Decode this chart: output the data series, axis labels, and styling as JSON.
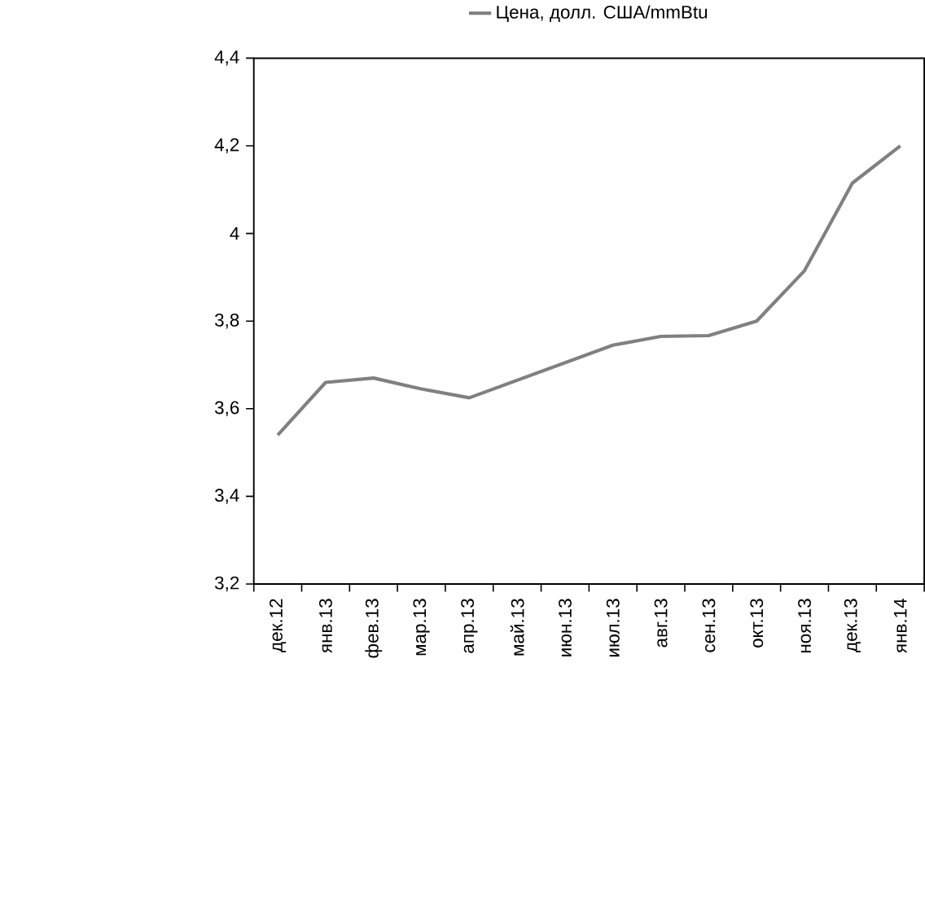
{
  "chart_data": {
    "type": "line",
    "categories": [
      "дек.12",
      "янв.13",
      "фев.13",
      "мар.13",
      "апр.13",
      "май.13",
      "июн.13",
      "июл.13",
      "авг.13",
      "сен.13",
      "окт.13",
      "ноя.13",
      "дек.13",
      "янв.14"
    ],
    "series": [
      {
        "name": "Цена, долл. США/mmBtu",
        "color": "#808080",
        "values": [
          3.54,
          3.66,
          3.67,
          3.645,
          3.625,
          3.665,
          3.705,
          3.745,
          3.765,
          3.767,
          3.8,
          3.915,
          4.115,
          4.2
        ]
      }
    ],
    "ylim": [
      3.2,
      4.4
    ],
    "yticks": [
      {
        "value": 3.2,
        "label": "3,2"
      },
      {
        "value": 3.4,
        "label": "3,4"
      },
      {
        "value": 3.6,
        "label": "3,6"
      },
      {
        "value": 3.8,
        "label": "3,8"
      },
      4,
      {
        "value": 4.2,
        "label": "4,2"
      },
      {
        "value": 4.4,
        "label": "4,4"
      }
    ],
    "grid": false,
    "legend": "top",
    "marker": "none",
    "line_style": "solid"
  }
}
